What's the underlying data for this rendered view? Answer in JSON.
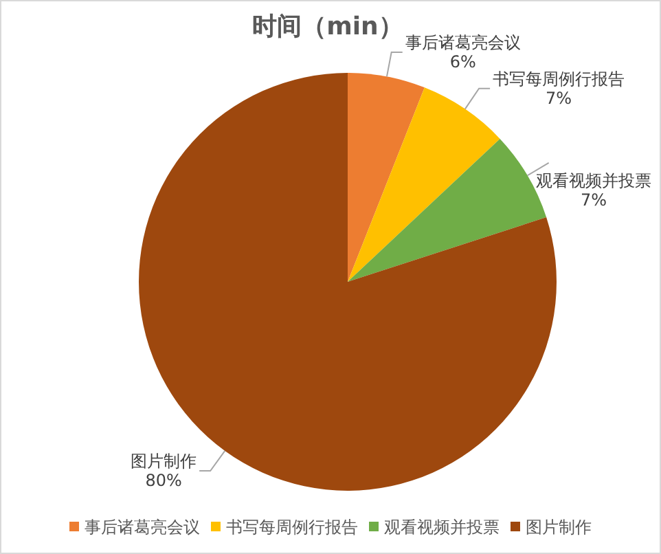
{
  "chart_data": {
    "type": "pie",
    "title": "时间（min）",
    "categories": [
      "事后诸葛亮会议",
      "书写每周例行报告",
      "观看视频并投票",
      "图片制作"
    ],
    "values": [
      6,
      7,
      7,
      80
    ],
    "value_labels": [
      "6%",
      "7%",
      "7%",
      "80%"
    ],
    "colors": [
      "#ED7D31",
      "#FFC000",
      "#70AD47",
      "#9E480E"
    ],
    "legend": "bottom"
  }
}
